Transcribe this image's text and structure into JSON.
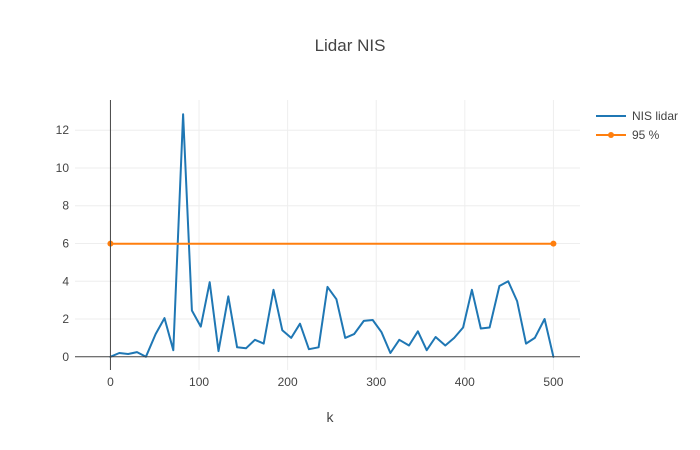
{
  "chart_data": {
    "type": "line",
    "title": "Lidar NIS",
    "xlabel": "k",
    "ylabel": "",
    "xlim": [
      -40,
      530
    ],
    "ylim": [
      -0.7,
      13.6
    ],
    "x_ticks": [
      0,
      100,
      200,
      300,
      400,
      500
    ],
    "y_ticks": [
      0,
      2,
      4,
      6,
      8,
      10,
      12
    ],
    "grid": true,
    "legend_position": "top-right",
    "series": [
      {
        "name": "NIS lidar",
        "color": "#1f77b4",
        "markers": false,
        "x": [
          0,
          10,
          20,
          30,
          40,
          51,
          61,
          71,
          82,
          92,
          102,
          112,
          122,
          133,
          143,
          153,
          163,
          173,
          184,
          194,
          204,
          214,
          224,
          235,
          245,
          255,
          265,
          275,
          286,
          296,
          306,
          316,
          326,
          337,
          347,
          357,
          367,
          378,
          388,
          398,
          408,
          418,
          428,
          439,
          449,
          459,
          469,
          479,
          490,
          500
        ],
        "y": [
          0.0,
          0.2,
          0.15,
          0.25,
          0.0,
          1.2,
          2.05,
          0.35,
          12.85,
          2.45,
          1.6,
          3.95,
          0.3,
          3.2,
          0.5,
          0.45,
          0.9,
          0.7,
          3.55,
          1.4,
          1.0,
          1.75,
          0.4,
          0.5,
          3.7,
          3.05,
          1.0,
          1.2,
          1.9,
          1.95,
          1.3,
          0.2,
          0.9,
          0.6,
          1.35,
          0.35,
          1.05,
          0.6,
          1.0,
          1.55,
          3.55,
          1.5,
          1.55,
          3.75,
          4.0,
          2.95,
          0.7,
          1.0,
          2.0,
          0.0
        ]
      },
      {
        "name": "95 %",
        "color": "#ff7f0e",
        "markers": true,
        "x": [
          0,
          500
        ],
        "y": [
          5.991,
          5.991
        ]
      }
    ]
  }
}
